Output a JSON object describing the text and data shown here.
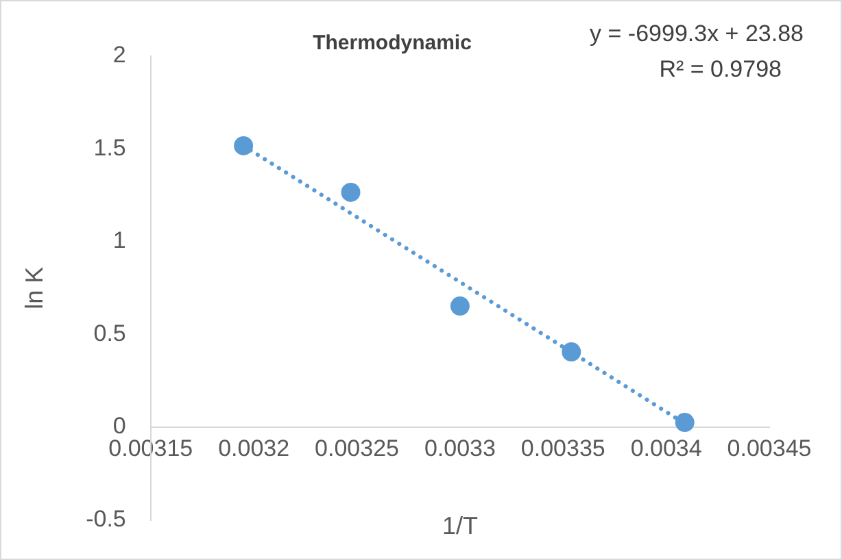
{
  "chart_data": {
    "type": "scatter",
    "title": "Thermodynamic",
    "xlabel": "1/T",
    "ylabel": "ln K",
    "x": [
      0.003195,
      0.003247,
      0.0033,
      0.003354,
      0.003409
    ],
    "series": [
      {
        "color": "#5b9bd5",
        "values": [
          1.517,
          1.266,
          0.653,
          0.406,
          0.026
        ]
      },
      {
        "type": "line",
        "color": "#5b9bd5",
        "line_style": "dotted",
        "marker": "none",
        "x": [
          0.003195,
          0.003409
        ],
        "values": [
          1.517,
          0.02
        ]
      }
    ],
    "xlim": [
      0.00315,
      0.00345
    ],
    "xticks": [
      0.00315,
      0.0032,
      0.00325,
      0.0033,
      0.00335,
      0.0034,
      0.00345
    ],
    "ylim": [
      -0.5,
      2
    ],
    "yticks": [
      -0.5,
      0,
      0.5,
      1,
      1.5,
      2
    ],
    "annotations": [
      "y = -6999.3x + 23.88",
      "R² = 0.9798"
    ],
    "marker": "circle",
    "grid": false,
    "legend": false
  }
}
